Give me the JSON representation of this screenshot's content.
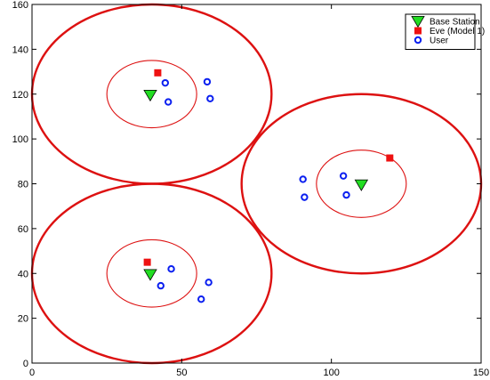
{
  "chart_data": {
    "type": "scatter",
    "title": "",
    "xlabel": "",
    "ylabel": "",
    "xlim": [
      0,
      150
    ],
    "ylim": [
      0,
      160
    ],
    "xticks": [
      0,
      50,
      100,
      150
    ],
    "yticks": [
      0,
      20,
      40,
      60,
      80,
      100,
      120,
      140,
      160
    ],
    "grid": false,
    "legend_position": "top-right",
    "series": [
      {
        "name": "Base Station",
        "marker": "triangle-down",
        "color": "#22dd22",
        "points": [
          [
            39.5,
            119.5
          ],
          [
            39.5,
            39.5
          ],
          [
            110,
            79.5
          ]
        ]
      },
      {
        "name": "Eve (Model 1)",
        "marker": "square",
        "color": "#ee1111",
        "points": [
          [
            42,
            129.5
          ],
          [
            38.5,
            45
          ],
          [
            119.5,
            91.5
          ]
        ]
      },
      {
        "name": "User",
        "marker": "circle-open",
        "color": "#0a1ff0",
        "points": [
          [
            44.5,
            125
          ],
          [
            45.5,
            116.5
          ],
          [
            58.5,
            125.5
          ],
          [
            59.5,
            118
          ],
          [
            46.5,
            42
          ],
          [
            43,
            34.5
          ],
          [
            56.5,
            28.5
          ],
          [
            59,
            36
          ],
          [
            90.5,
            82
          ],
          [
            91,
            74
          ],
          [
            104,
            83.5
          ],
          [
            105,
            75
          ]
        ]
      }
    ],
    "circles": [
      {
        "center": [
          40,
          120
        ],
        "radius": 40,
        "kind": "outer",
        "color": "#dd1111"
      },
      {
        "center": [
          40,
          120
        ],
        "radius": 15,
        "kind": "inner",
        "color": "#dd1111"
      },
      {
        "center": [
          40,
          40
        ],
        "radius": 40,
        "kind": "outer",
        "color": "#dd1111"
      },
      {
        "center": [
          40,
          40
        ],
        "radius": 15,
        "kind": "inner",
        "color": "#dd1111"
      },
      {
        "center": [
          110,
          80
        ],
        "radius": 40,
        "kind": "outer",
        "color": "#dd1111"
      },
      {
        "center": [
          110,
          80
        ],
        "radius": 15,
        "kind": "inner",
        "color": "#dd1111"
      }
    ]
  }
}
